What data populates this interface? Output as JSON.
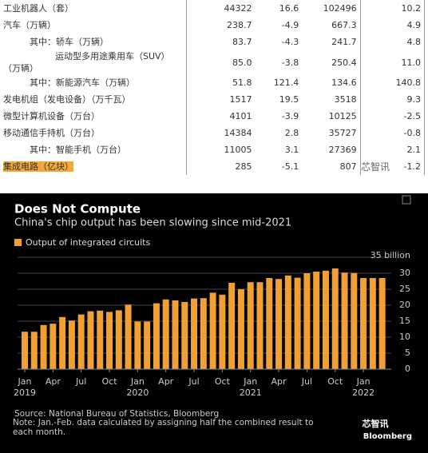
{
  "table": {
    "rows": [
      [
        "工业机器人（套）",
        "44322",
        "16.6",
        "102496",
        "10.2"
      ],
      [
        "汽车（万辆）",
        "238.7",
        "-4.9",
        "667.3",
        "4.9"
      ],
      [
        "其中：轿车（万辆）",
        "83.7",
        "-4.3",
        "241.7",
        "4.8"
      ],
      [
        "运动型多用途乘用车（SUV）（万辆）",
        "85.0",
        "-3.8",
        "250.4",
        "11.0"
      ],
      [
        "其中：新能源汽车（万辆）",
        "51.8",
        "121.4",
        "134.6",
        "140.8"
      ],
      [
        "发电机组（发电设备）（万千瓦）",
        "1517",
        "19.5",
        "3518",
        "9.3"
      ],
      [
        "微型计算机设备（万台）",
        "4101",
        "-3.9",
        "10125",
        "-2.5"
      ],
      [
        "移动通信手持机（万台）",
        "14384",
        "2.8",
        "35727",
        "-0.8"
      ],
      [
        "其中：智能手机（万台）",
        "11005",
        "3.1",
        "27369",
        "2.1"
      ],
      [
        "集成电路（亿块）",
        "285",
        "-5.1",
        "807",
        "-1.2"
      ]
    ],
    "watermark": "芯智讯"
  },
  "chart_data": {
    "type": "bar",
    "title": "Does Not Compute",
    "subtitle": "China's chip output has been slowing since mid-2021",
    "categories": [
      "Jan",
      null,
      null,
      "Apr",
      null,
      null,
      "Jul",
      null,
      null,
      "Oct",
      null,
      null,
      "Jan",
      null,
      null,
      "Apr",
      null,
      null,
      "Jul",
      null,
      null,
      "Oct",
      null,
      null,
      "Jan",
      null,
      null,
      "Apr",
      null,
      null,
      "Jul",
      null,
      null,
      "Oct",
      null,
      null,
      "Jan",
      null,
      null
    ],
    "x_sublabels": [
      "2019",
      null,
      null,
      null,
      null,
      null,
      null,
      null,
      null,
      null,
      null,
      null,
      "2020",
      null,
      null,
      null,
      null,
      null,
      null,
      null,
      null,
      null,
      null,
      null,
      "2021",
      null,
      null,
      null,
      null,
      null,
      null,
      null,
      null,
      null,
      null,
      null,
      "2022",
      null,
      null
    ],
    "series": [
      {
        "name": "Output of integrated circuits",
        "color": "#f0a035",
        "values": [
          11.7,
          11.7,
          13.8,
          14.2,
          16.3,
          15.2,
          17.1,
          18.1,
          18.3,
          17.9,
          18.4,
          20.2,
          14.9,
          14.9,
          20.6,
          21.8,
          21.5,
          21.0,
          22.1,
          22.2,
          23.9,
          23.3,
          27.0,
          25.0,
          27.2,
          27.2,
          28.5,
          28.2,
          29.3,
          28.6,
          30.0,
          30.5,
          30.8,
          31.5,
          30.2,
          30.1,
          28.5,
          28.5,
          28.5
        ]
      }
    ],
    "ylim": [
      0,
      35
    ],
    "yticks": [
      0,
      5,
      10,
      15,
      20,
      25,
      30,
      {
        "value": 35,
        "label": "35 billion"
      }
    ],
    "grid": true,
    "source": "Source: National Bureau of Statistics, Bloomberg",
    "note": "Note: Jan.-Feb. data calculated by assigning half the combined result to each month.",
    "logo": "芯智讯",
    "brand": "Bloomberg"
  }
}
